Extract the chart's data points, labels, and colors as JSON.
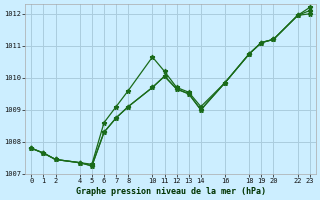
{
  "title": "Graphe pression niveau de la mer (hPa)",
  "background_color": "#cceeff",
  "grid_color": "#aaccdd",
  "line_color": "#1a6b1a",
  "xlim": [
    -0.5,
    23.5
  ],
  "ylim": [
    1007,
    1012.3
  ],
  "yticks": [
    1007,
    1008,
    1009,
    1010,
    1011,
    1012
  ],
  "xtick_positions": [
    0,
    1,
    2,
    4,
    5,
    6,
    7,
    8,
    10,
    11,
    12,
    13,
    14,
    16,
    18,
    19,
    20,
    22,
    23
  ],
  "xtick_labels": [
    "0",
    "1",
    "2",
    "4",
    "5",
    "6",
    "7",
    "8",
    "10",
    "11",
    "12",
    "13",
    "14",
    "16",
    "18",
    "19",
    "20",
    "22",
    "23"
  ],
  "series": [
    [
      [
        0,
        1,
        2,
        4,
        5,
        6,
        7,
        8,
        10,
        11,
        12,
        13,
        14,
        16,
        18,
        19,
        20,
        22,
        23
      ],
      [
        1007.8,
        1007.65,
        1007.45,
        1007.35,
        1007.3,
        1008.6,
        1009.1,
        1009.6,
        1010.65,
        1010.2,
        1009.7,
        1009.55,
        1009.1,
        1009.85,
        1010.75,
        1011.1,
        1011.2,
        1011.95,
        1012.2
      ]
    ],
    [
      [
        0,
        1,
        2,
        4,
        5,
        6,
        7,
        8,
        10,
        11,
        12,
        13,
        14,
        16,
        18,
        19,
        20,
        22,
        23
      ],
      [
        1007.8,
        1007.65,
        1007.45,
        1007.35,
        1007.25,
        1008.3,
        1008.75,
        1009.1,
        1009.7,
        1010.05,
        1009.65,
        1009.5,
        1009.0,
        1009.85,
        1010.75,
        1011.1,
        1011.2,
        1011.95,
        1012.1
      ]
    ],
    [
      [
        0,
        1,
        2,
        4,
        5,
        6,
        7,
        8,
        10,
        11,
        12,
        13,
        14,
        16,
        18,
        19,
        20,
        22,
        23
      ],
      [
        1007.8,
        1007.65,
        1007.45,
        1007.35,
        1007.25,
        1008.3,
        1008.75,
        1009.1,
        1009.7,
        1010.05,
        1009.65,
        1009.5,
        1009.0,
        1009.85,
        1010.75,
        1011.1,
        1011.2,
        1011.95,
        1012.0
      ]
    ]
  ]
}
